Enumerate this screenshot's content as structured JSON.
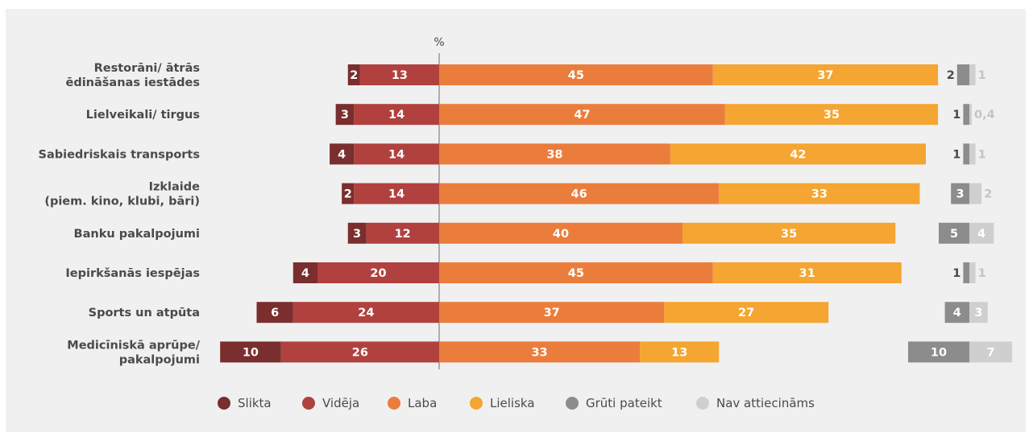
{
  "chart_data": {
    "type": "bar",
    "orientation": "horizontal",
    "stacked": "diverging",
    "axis_unit_label": "%",
    "categories": [
      [
        "Restorāni/ ātrās",
        "ēdināšanas iestādes"
      ],
      [
        "Lielveikali/ tirgus"
      ],
      [
        "Sabiedriskais transports"
      ],
      [
        "Izklaide",
        "(piem. kino, klubi, bāri)"
      ],
      [
        "Banku pakalpojumi"
      ],
      [
        "Iepirkšanās iespējas"
      ],
      [
        "Sports un atpūta"
      ],
      [
        "Medicīniskā aprūpe/",
        "pakalpojumi"
      ]
    ],
    "series": [
      {
        "name": "Slikta",
        "side": "negative",
        "color": "#7a2e2e",
        "text_color": "#ffffff",
        "values": [
          2,
          3,
          4,
          2,
          3,
          4,
          6,
          10
        ],
        "labels": [
          "2",
          "3",
          "4",
          "2",
          "3",
          "4",
          "6",
          "10"
        ]
      },
      {
        "name": "Vidēja",
        "side": "negative",
        "color": "#b0413e",
        "text_color": "#ffffff",
        "values": [
          13,
          14,
          14,
          14,
          12,
          20,
          24,
          26
        ],
        "labels": [
          "13",
          "14",
          "14",
          "14",
          "12",
          "20",
          "24",
          "26"
        ]
      },
      {
        "name": "Laba",
        "side": "positive",
        "color": "#eb7d3c",
        "text_color": "#ffffff",
        "values": [
          45,
          47,
          38,
          46,
          40,
          45,
          37,
          33
        ],
        "labels": [
          "45",
          "47",
          "38",
          "46",
          "40",
          "45",
          "37",
          "33"
        ]
      },
      {
        "name": "Lieliska",
        "side": "positive",
        "color": "#f5a531",
        "text_color": "#ffffff",
        "values": [
          37,
          35,
          42,
          33,
          35,
          31,
          27,
          13
        ],
        "labels": [
          "37",
          "35",
          "42",
          "33",
          "35",
          "31",
          "27",
          "13"
        ]
      },
      {
        "name": "Grūti pateikt",
        "side": "separate",
        "color": "#8c8c8c",
        "text_color": "#ffffff",
        "values": [
          2,
          1,
          1,
          3,
          5,
          1,
          4,
          10
        ],
        "labels": [
          "2",
          "1",
          "1",
          "3",
          "5",
          "1",
          "4",
          "10"
        ]
      },
      {
        "name": "Nav attiecināms",
        "side": "separate",
        "color": "#cfcfcf",
        "text_color": "#ffffff",
        "values": [
          1,
          0.4,
          1,
          2,
          4,
          1,
          3,
          7
        ],
        "labels": [
          "1",
          "0,4",
          "1",
          "2",
          "4",
          "1",
          "3",
          "7"
        ]
      }
    ],
    "legend_position": "bottom",
    "grid": false
  }
}
